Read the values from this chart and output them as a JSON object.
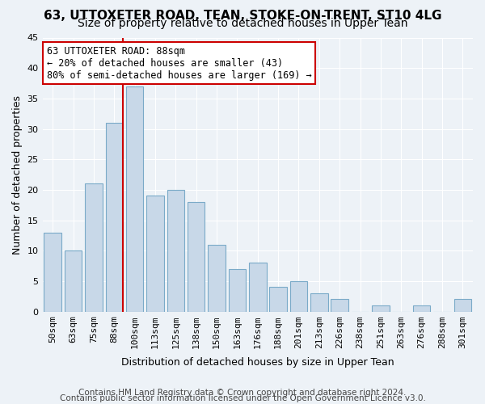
{
  "title": "63, UTTOXETER ROAD, TEAN, STOKE-ON-TRENT, ST10 4LG",
  "subtitle": "Size of property relative to detached houses in Upper Tean",
  "xlabel": "Distribution of detached houses by size in Upper Tean",
  "ylabel": "Number of detached properties",
  "bar_color": "#c8d8e8",
  "bar_edge_color": "#7aaac8",
  "categories": [
    "50sqm",
    "63sqm",
    "75sqm",
    "88sqm",
    "100sqm",
    "113sqm",
    "125sqm",
    "138sqm",
    "150sqm",
    "163sqm",
    "176sqm",
    "188sqm",
    "201sqm",
    "213sqm",
    "226sqm",
    "238sqm",
    "251sqm",
    "263sqm",
    "276sqm",
    "288sqm",
    "301sqm"
  ],
  "values": [
    13,
    10,
    21,
    31,
    37,
    19,
    20,
    18,
    11,
    7,
    8,
    4,
    5,
    3,
    2,
    0,
    1,
    0,
    1,
    0,
    2
  ],
  "ylim": [
    0,
    45
  ],
  "yticks": [
    0,
    5,
    10,
    15,
    20,
    25,
    30,
    35,
    40,
    45
  ],
  "property_line_idx": 3,
  "annotation_text": "63 UTTOXETER ROAD: 88sqm\n← 20% of detached houses are smaller (43)\n80% of semi-detached houses are larger (169) →",
  "annotation_box_color": "#ffffff",
  "annotation_box_edge": "#cc0000",
  "annotation_line_color": "#cc0000",
  "footer1": "Contains HM Land Registry data © Crown copyright and database right 2024.",
  "footer2": "Contains public sector information licensed under the Open Government Licence v3.0.",
  "background_color": "#edf2f7",
  "grid_color": "#ffffff",
  "title_fontsize": 11,
  "subtitle_fontsize": 10,
  "axis_label_fontsize": 9,
  "tick_fontsize": 8,
  "footer_fontsize": 7.5
}
